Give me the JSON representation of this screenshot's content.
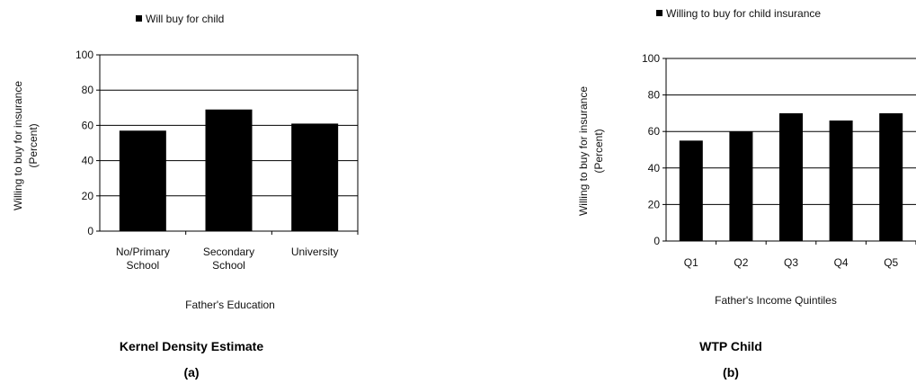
{
  "chart_data": [
    {
      "type": "bar",
      "legend": "Will buy for child",
      "ylabel_line1": "Willing to buy for insurance",
      "ylabel_line2": "(Percent)",
      "xlabel": "Father's Education",
      "categories": [
        [
          "No/Primary",
          "School"
        ],
        [
          "Secondary",
          "School"
        ],
        [
          "University"
        ]
      ],
      "values": [
        57,
        69,
        61
      ],
      "ylim": [
        0,
        100
      ],
      "yticks": [
        "0",
        "20",
        "40",
        "60",
        "80",
        "100"
      ],
      "grid": true,
      "title": "Kernel Density Estimate",
      "panel": "(a)",
      "bar_color": "#000000"
    },
    {
      "type": "bar",
      "legend": "Willing to buy for child insurance",
      "ylabel_line1": "Willing to buy for insurance",
      "ylabel_line2": "(Percent)",
      "xlabel": "Father's Income Quintiles",
      "categories": [
        [
          "Q1"
        ],
        [
          "Q2"
        ],
        [
          "Q3"
        ],
        [
          "Q4"
        ],
        [
          "Q5"
        ]
      ],
      "values": [
        55,
        60,
        70,
        66,
        70
      ],
      "ylim": [
        0,
        100
      ],
      "yticks": [
        "0",
        "20",
        "40",
        "60",
        "80",
        "100"
      ],
      "grid": true,
      "title": "WTP Child",
      "panel": "(b)",
      "bar_color": "#000000"
    }
  ]
}
